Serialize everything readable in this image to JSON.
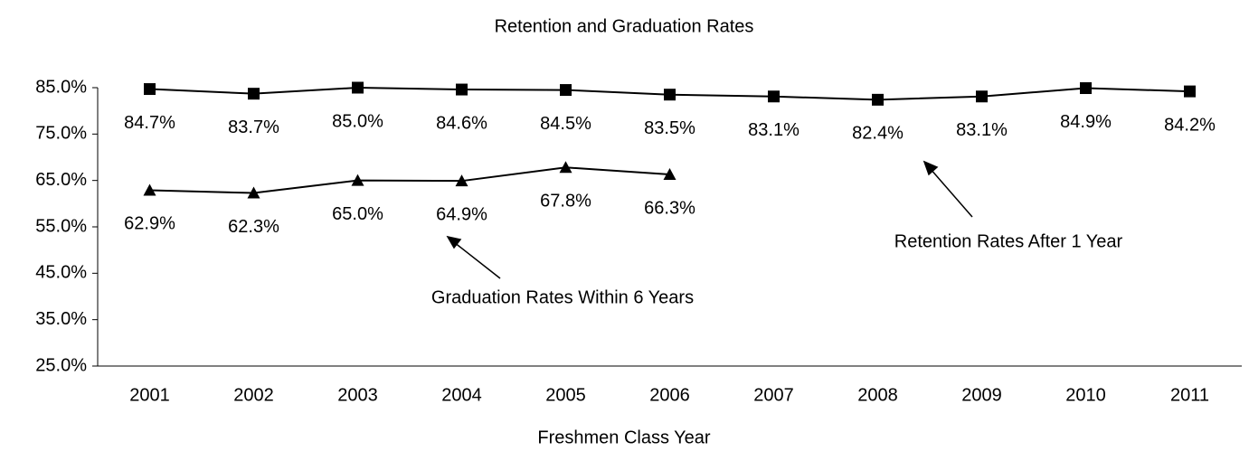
{
  "chart_data": {
    "type": "line",
    "title": "Retention and Graduation Rates",
    "x_label": "Freshmen Class Year",
    "categories": [
      "2001",
      "2002",
      "2003",
      "2004",
      "2005",
      "2006",
      "2007",
      "2008",
      "2009",
      "2010",
      "2011"
    ],
    "series": [
      {
        "name": "Retention Rates After 1 Year",
        "color": "#000000",
        "marker": "square",
        "values": [
          84.7,
          83.7,
          85.0,
          84.6,
          84.5,
          83.5,
          83.1,
          82.4,
          83.1,
          84.9,
          84.2
        ],
        "value_labels": [
          "84.7%",
          "83.7%",
          "85.0%",
          "84.6%",
          "84.5%",
          "83.5%",
          "83.1%",
          "82.4%",
          "83.1%",
          "84.9%",
          "84.2%"
        ]
      },
      {
        "name": "Graduation Rates Within 6 Years",
        "color": "#000000",
        "marker": "triangle",
        "values": [
          62.9,
          62.3,
          65.0,
          64.9,
          67.8,
          66.3,
          null,
          null,
          null,
          null,
          null
        ],
        "value_labels": [
          "62.9%",
          "62.3%",
          "65.0%",
          "64.9%",
          "67.8%",
          "66.3%",
          null,
          null,
          null,
          null,
          null
        ]
      }
    ],
    "ylim": [
      25,
      85
    ],
    "yticks": [
      {
        "value": 25,
        "label": "25.0%"
      },
      {
        "value": 35,
        "label": "35.0%"
      },
      {
        "value": 45,
        "label": "45.0%"
      },
      {
        "value": 55,
        "label": "55.0%"
      },
      {
        "value": 65,
        "label": "65.0%"
      },
      {
        "value": 75,
        "label": "75.0%"
      },
      {
        "value": 85,
        "label": "85.0%"
      }
    ],
    "grid": false
  }
}
